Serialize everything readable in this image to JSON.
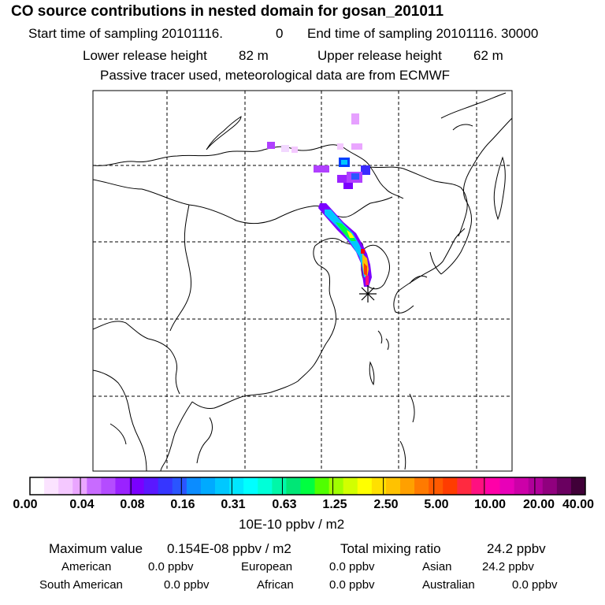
{
  "header": {
    "title": "CO  source contributions in nested domain for gosan_201011",
    "start_label": "Start time of sampling 20101116.",
    "start_hour": "0",
    "end_label": "End time of sampling 20101116. 30000",
    "lower_label": "Lower release height",
    "lower_value": "82 m",
    "upper_label": "Upper release height",
    "upper_value": "62 m",
    "tracer_note": "Passive tracer used, meteorological data are from ECMWF"
  },
  "colorbar": {
    "tick_labels": [
      "0.00",
      "0.04",
      "0.08",
      "0.16",
      "0.31",
      "0.63",
      "1.25",
      "2.50",
      "5.00",
      "10.00",
      "20.00",
      "40.00"
    ],
    "unit_label": "10E-10 ppbv / m2",
    "colors": [
      "#ffffff",
      "#fbe3ff",
      "#f4c8ff",
      "#eaa6ff",
      "#c86bff",
      "#b44cff",
      "#9a22ff",
      "#7a00ff",
      "#5a18ff",
      "#3636ff",
      "#2a55ff",
      "#0b8cff",
      "#00aaff",
      "#00c8ff",
      "#00e6ff",
      "#00ffff",
      "#00ffd8",
      "#00f7a8",
      "#00e676",
      "#00ff40",
      "#50ff00",
      "#a0ff00",
      "#d2ff00",
      "#ffff00",
      "#ffe000",
      "#ffc200",
      "#ffa000",
      "#ff7a00",
      "#ff5a00",
      "#ff3c00",
      "#ff2a40",
      "#ff1080",
      "#ff00a8",
      "#e800b8",
      "#cc00a8",
      "#b0009a",
      "#90007e",
      "#6a0060",
      "#400038"
    ]
  },
  "footer": {
    "max_label": "Maximum value",
    "max_value": "0.154E-08 ppbv / m2",
    "total_label": "Total mixing ratio",
    "total_value": "24.2 ppbv",
    "regions": [
      {
        "name": "American",
        "value": "0.0 ppbv"
      },
      {
        "name": "European",
        "value": "0.0 ppbv"
      },
      {
        "name": "Asian",
        "value": "24.2 ppbv"
      },
      {
        "name": "South American",
        "value": "0.0 ppbv"
      },
      {
        "name": "African",
        "value": "0.0 ppbv"
      },
      {
        "name": "Australian",
        "value": "0.0 ppbv"
      }
    ]
  },
  "chart_data": {
    "type": "heatmap",
    "title": "CO  source contributions in nested domain for gosan_201011",
    "grid": true,
    "colorbar_scale": [
      0.0,
      0.04,
      0.08,
      0.16,
      0.31,
      0.63,
      1.25,
      2.5,
      5.0,
      10.0,
      20.0,
      40.0
    ],
    "receptor": "gosan",
    "max_value": "0.154E-08 ppbv / m2",
    "total_mixing_ratio_ppbv": 24.2
  }
}
